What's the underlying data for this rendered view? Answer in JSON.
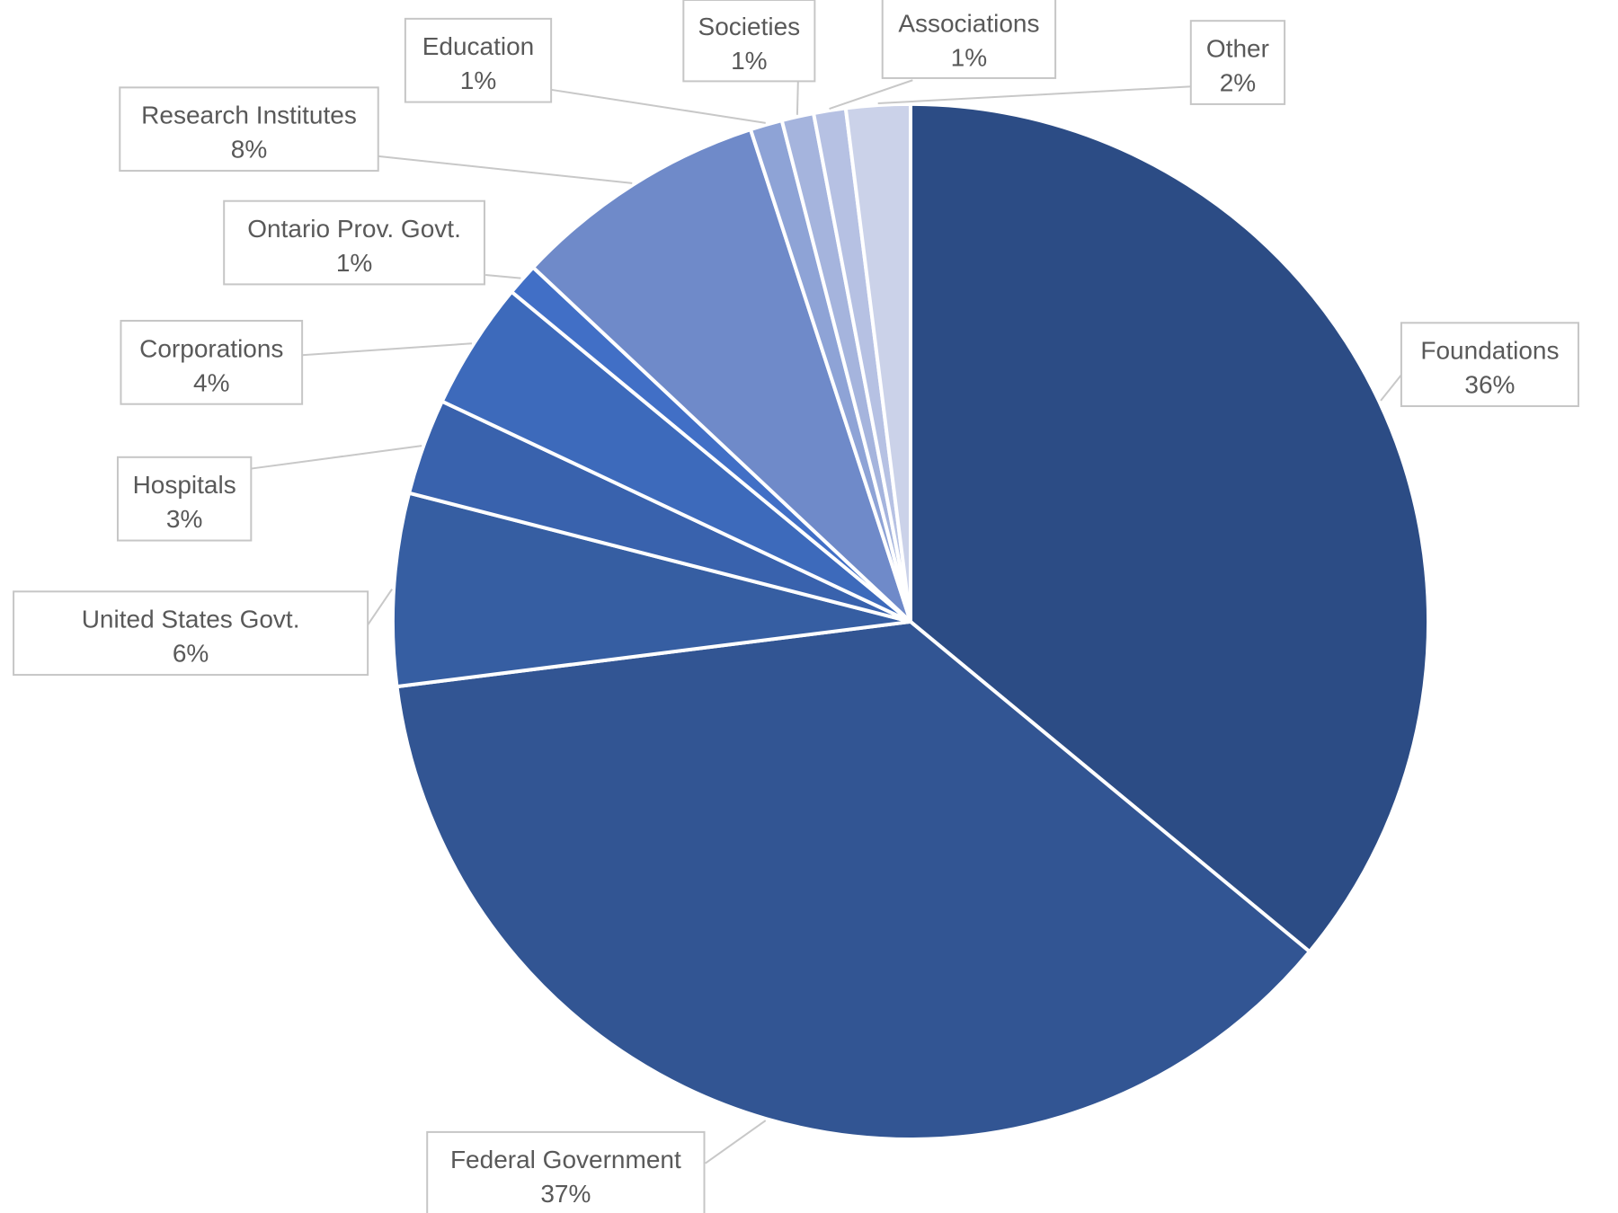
{
  "chart_data": {
    "type": "pie",
    "title": "",
    "start_angle_deg": 0,
    "direction": "clockwise",
    "legend": "none",
    "data_labels": "outside-callouts",
    "slices": [
      {
        "label": "Foundations",
        "value": 36,
        "display": "36%",
        "color": "#2c4c85"
      },
      {
        "label": "Federal Government",
        "value": 37,
        "display": "37%",
        "color": "#325593"
      },
      {
        "label": "United States Govt.",
        "value": 6,
        "display": "6%",
        "color": "#365ea2"
      },
      {
        "label": "Hospitals",
        "value": 3,
        "display": "3%",
        "color": "#3962ad"
      },
      {
        "label": "Corporations",
        "value": 4,
        "display": "4%",
        "color": "#3d6abb"
      },
      {
        "label": "Ontario Prov. Govt.",
        "value": 1,
        "display": "1%",
        "color": "#416fc6"
      },
      {
        "label": "Research Institutes",
        "value": 8,
        "display": "8%",
        "color": "#6f8ac9"
      },
      {
        "label": "Education",
        "value": 1,
        "display": "1%",
        "color": "#8ea3d6"
      },
      {
        "label": "Societies",
        "value": 1,
        "display": "1%",
        "color": "#a5b4dd"
      },
      {
        "label": "Associations",
        "value": 1,
        "display": "1%",
        "color": "#b6c1e3"
      },
      {
        "label": "Other",
        "value": 2,
        "display": "2%",
        "color": "#cbd2e9"
      }
    ]
  }
}
